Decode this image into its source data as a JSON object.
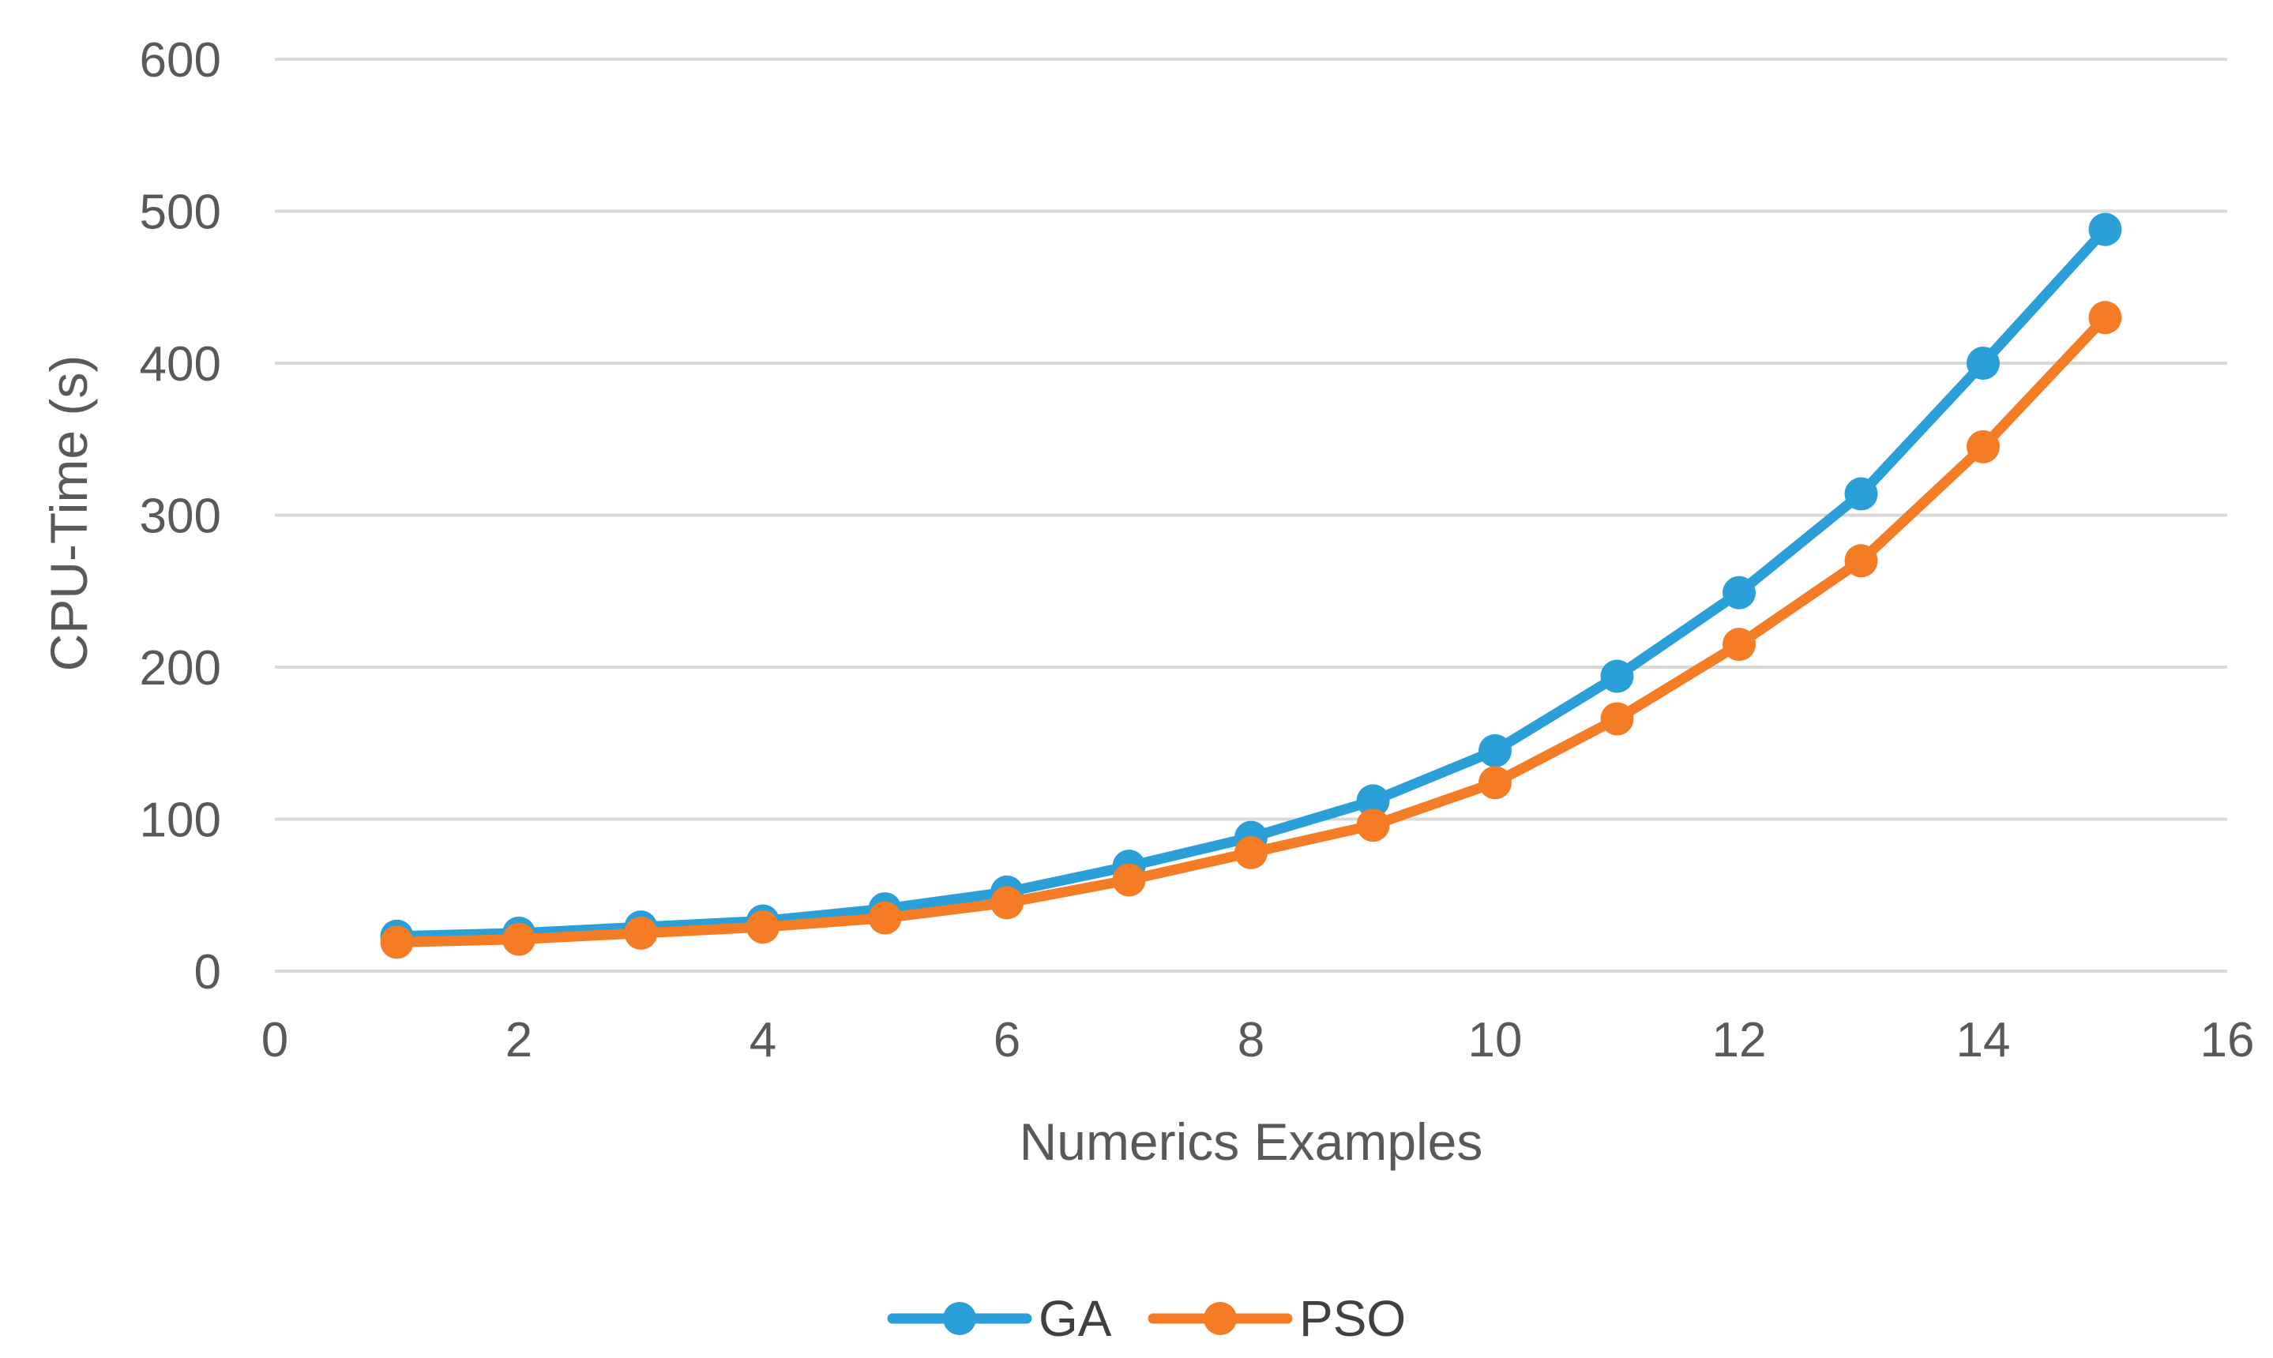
{
  "chart_data": {
    "type": "line",
    "title": "",
    "xlabel": "Numerics Examples",
    "ylabel": "CPU-Time (s)",
    "xlim": [
      0,
      16
    ],
    "ylim": [
      0,
      600
    ],
    "xticks": [
      0,
      2,
      4,
      6,
      8,
      10,
      12,
      14,
      16
    ],
    "yticks": [
      0,
      100,
      200,
      300,
      400,
      500,
      600
    ],
    "grid": "horizontal",
    "legend_position": "bottom",
    "x": [
      1,
      2,
      3,
      4,
      5,
      6,
      7,
      8,
      9,
      10,
      11,
      12,
      13,
      14,
      15
    ],
    "series": [
      {
        "name": "GA",
        "color": "#2a9fd8",
        "values": [
          23,
          25,
          29,
          33,
          41,
          52,
          69,
          88,
          112,
          145,
          194,
          249,
          314,
          400,
          488
        ]
      },
      {
        "name": "PSO",
        "color": "#f47c25",
        "values": [
          19,
          21,
          25,
          29,
          35,
          45,
          60,
          78,
          96,
          124,
          166,
          215,
          270,
          345,
          430
        ]
      }
    ]
  }
}
